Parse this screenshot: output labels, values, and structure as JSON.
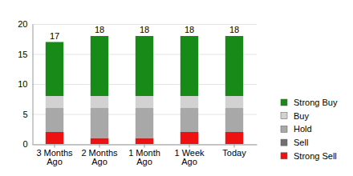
{
  "chart_data": {
    "type": "bar",
    "stacked": true,
    "grid": true,
    "legend": "right",
    "categories": [
      "3 Months Ago",
      "2 Months Ago",
      "1 Month Ago",
      "1 Week Ago",
      "Today"
    ],
    "series": [
      {
        "name": "Strong Sell",
        "color": "#ee1111",
        "values": [
          2,
          1,
          1,
          2,
          2
        ]
      },
      {
        "name": "Sell",
        "color": "#707070",
        "values": [
          0,
          0,
          0,
          0,
          0
        ]
      },
      {
        "name": "Hold",
        "color": "#a8a8a8",
        "values": [
          4,
          5,
          5,
          4,
          4
        ]
      },
      {
        "name": "Buy",
        "color": "#d2d2d2",
        "values": [
          2,
          2,
          2,
          2,
          2
        ]
      },
      {
        "name": "Strong Buy",
        "color": "#188a18",
        "values": [
          9,
          10,
          10,
          10,
          10
        ]
      }
    ],
    "totals": [
      17,
      18,
      18,
      18,
      18
    ],
    "ylim": [
      0,
      20
    ],
    "yticks": [
      0,
      5,
      10,
      15,
      20
    ]
  }
}
